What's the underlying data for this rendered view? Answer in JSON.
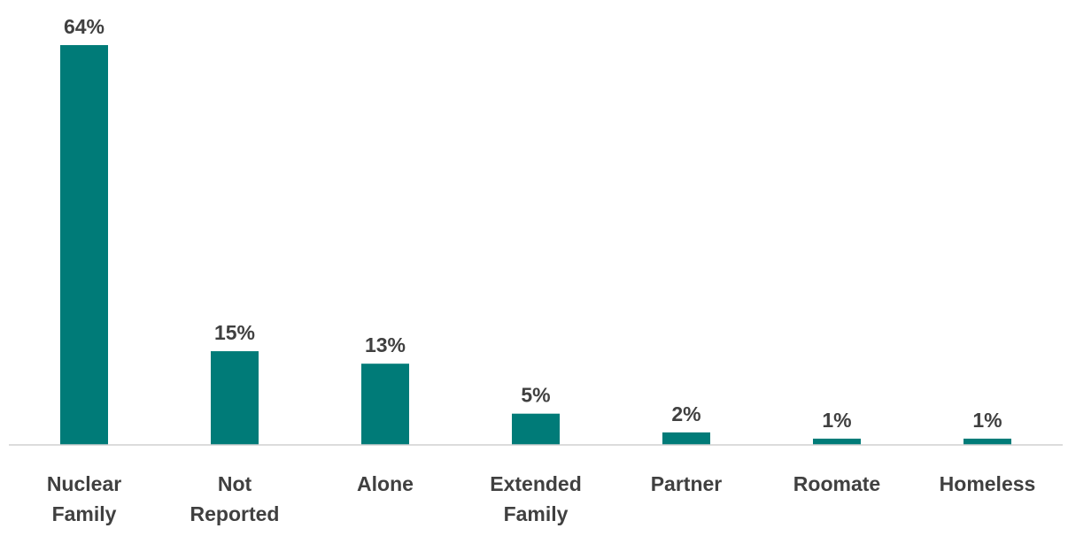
{
  "chart_data": {
    "type": "bar",
    "title": "",
    "xlabel": "",
    "ylabel": "",
    "categories": [
      [
        "Nuclear",
        "Family"
      ],
      [
        "Not",
        "Reported"
      ],
      [
        "Alone"
      ],
      [
        "Extended",
        "Family"
      ],
      [
        "Partner"
      ],
      [
        "Roomate"
      ],
      [
        "Homeless"
      ]
    ],
    "values": [
      64,
      15,
      13,
      5,
      2,
      1,
      1
    ],
    "data_labels": [
      "64%",
      "15%",
      "13%",
      "5%",
      "2%",
      "1%",
      "1%"
    ],
    "unit": "%",
    "ylim": [
      0,
      64
    ],
    "grid": false,
    "legend": "none",
    "bar_color": "#007B78",
    "axis_color": "#D0D0D0",
    "text_color": "#404040"
  }
}
